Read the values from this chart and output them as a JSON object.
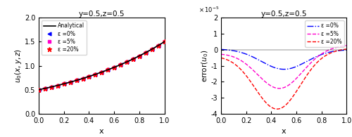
{
  "title": "y=0.5,z=0.5",
  "left_ylabel": "$u_0(x,y,z)$",
  "right_ylabel": "$\\mathrm{error}(u_0)$",
  "xlabel": "x",
  "xlim": [
    0,
    1
  ],
  "left_ylim": [
    0,
    2
  ],
  "right_ylim": [
    -4e-05,
    2e-05
  ],
  "left_yticks": [
    0,
    0.5,
    1.0,
    1.5,
    2.0
  ],
  "right_yticks": [
    -4e-05,
    -3e-05,
    -2e-05,
    -1e-05,
    0,
    1e-05,
    2e-05
  ],
  "analytical_color": "#000000",
  "eps0_color": "#0000FF",
  "eps5_color": "#FF00CC",
  "eps20_color": "#FF0000",
  "legend_analytical": "Analytical",
  "legend_eps0": "ε =0%",
  "legend_eps5": "ε =5%",
  "legend_eps20": "ε =20%"
}
